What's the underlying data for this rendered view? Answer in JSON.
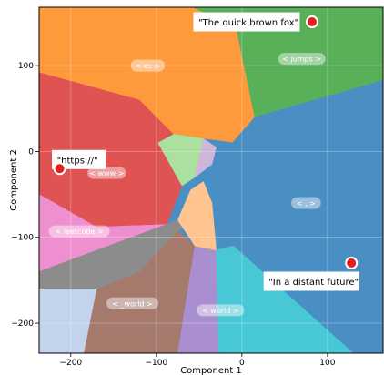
{
  "chart_data": {
    "type": "scatter",
    "xlabel": "Component 1",
    "ylabel": "Component 2",
    "xlim": [
      -237,
      165
    ],
    "ylim": [
      -235,
      168
    ],
    "xticks": [
      -200,
      -100,
      0,
      100
    ],
    "yticks": [
      -200,
      -100,
      0,
      100
    ],
    "grid": true,
    "regions": [
      {
        "label": "< es >",
        "color": "#ff9a3c",
        "polygon": [
          [
            -237,
            168
          ],
          [
            -58,
            168
          ],
          [
            -7,
            146
          ],
          [
            15,
            40
          ],
          [
            -5,
            10
          ],
          [
            -80,
            20
          ],
          [
            -120,
            60
          ],
          [
            -237,
            92
          ]
        ]
      },
      {
        "label": "< jumps >",
        "color": "#58b158",
        "polygon": [
          [
            -58,
            168
          ],
          [
            165,
            168
          ],
          [
            165,
            83
          ],
          [
            120,
            70
          ],
          [
            15,
            40
          ],
          [
            -7,
            146
          ]
        ]
      },
      {
        "label": "< www >",
        "color": "#e05353",
        "polygon": [
          [
            -237,
            92
          ],
          [
            -120,
            60
          ],
          [
            -80,
            20
          ],
          [
            -98,
            10
          ],
          [
            -70,
            -40
          ],
          [
            -88,
            -85
          ],
          [
            -170,
            -88
          ],
          [
            -237,
            -50
          ]
        ]
      },
      {
        "label": "< , >",
        "color": "#4a8fc4",
        "polygon": [
          [
            15,
            40
          ],
          [
            120,
            70
          ],
          [
            165,
            83
          ],
          [
            165,
            -235
          ],
          [
            -27,
            -235
          ],
          [
            -30,
            -115
          ],
          [
            -45,
            -45
          ],
          [
            -35,
            -15
          ],
          [
            -20,
            0
          ]
        ]
      },
      {
        "label": "< leetcode >",
        "color": "#ee8fcf",
        "polygon": [
          [
            -237,
            -50
          ],
          [
            -170,
            -88
          ],
          [
            -88,
            -85
          ],
          [
            -75,
            -92
          ],
          [
            -120,
            -140
          ],
          [
            -237,
            -140
          ]
        ]
      },
      {
        "label": "< _world >",
        "color": "#a57a6d",
        "polygon": [
          [
            -120,
            -140
          ],
          [
            -75,
            -92
          ],
          [
            -55,
            -110
          ],
          [
            -75,
            -235
          ],
          [
            -185,
            -235
          ],
          [
            -170,
            -160
          ]
        ]
      },
      {
        "label": "< world >",
        "color": "#a98fcf",
        "polygon": [
          [
            -75,
            -235
          ],
          [
            -55,
            -110
          ],
          [
            -30,
            -115
          ],
          [
            80,
            -235
          ]
        ]
      },
      {
        "label": "",
        "color": "#8c8c8c",
        "polygon": [
          [
            -237,
            -160
          ],
          [
            -170,
            -160
          ],
          [
            -120,
            -140
          ],
          [
            -75,
            -92
          ],
          [
            -60,
            -85
          ],
          [
            -75,
            -80
          ],
          [
            -237,
            -140
          ]
        ]
      },
      {
        "label": "",
        "color": "#c2d3eb",
        "polygon": [
          [
            -237,
            -235
          ],
          [
            -185,
            -235
          ],
          [
            -170,
            -160
          ],
          [
            -237,
            -160
          ]
        ]
      },
      {
        "label": "",
        "color": "#48c8d5",
        "polygon": [
          [
            -30,
            -115
          ],
          [
            -27,
            -235
          ],
          [
            130,
            -235
          ],
          [
            -10,
            -110
          ]
        ]
      },
      {
        "label": "",
        "color": "#ffc48f",
        "polygon": [
          [
            -75,
            -80
          ],
          [
            -55,
            -110
          ],
          [
            -30,
            -115
          ],
          [
            -35,
            -60
          ],
          [
            -45,
            -35
          ],
          [
            -60,
            -45
          ]
        ]
      },
      {
        "label": "",
        "color": "#abe19e",
        "polygon": [
          [
            -98,
            10
          ],
          [
            -80,
            20
          ],
          [
            -45,
            15
          ],
          [
            -55,
            -30
          ],
          [
            -70,
            -40
          ]
        ]
      },
      {
        "label": "",
        "color": "#cdb6d9",
        "polygon": [
          [
            -45,
            15
          ],
          [
            -30,
            5
          ],
          [
            -35,
            -15
          ],
          [
            -55,
            -30
          ]
        ]
      }
    ],
    "region_label_points": [
      {
        "label": "< es >",
        "x": -110,
        "y": 100
      },
      {
        "label": "< jumps >",
        "x": 70,
        "y": 108
      },
      {
        "label": "< www >",
        "x": -158,
        "y": -25
      },
      {
        "label": "< , >",
        "x": 75,
        "y": -60
      },
      {
        "label": "< leetcode >",
        "x": -190,
        "y": -93
      },
      {
        "label": "< _world >",
        "x": -128,
        "y": -177
      },
      {
        "label": "< world >",
        "x": -25,
        "y": -185
      }
    ],
    "points": [
      {
        "label": "\"The quick brown fox\"",
        "x": 82,
        "y": 151,
        "color": "#e0201b"
      },
      {
        "label": "\"https://\"",
        "x": -213,
        "y": -20,
        "color": "#e0201b"
      },
      {
        "label": "\"In a distant future\"",
        "x": 128,
        "y": -130,
        "color": "#e0201b"
      }
    ]
  }
}
